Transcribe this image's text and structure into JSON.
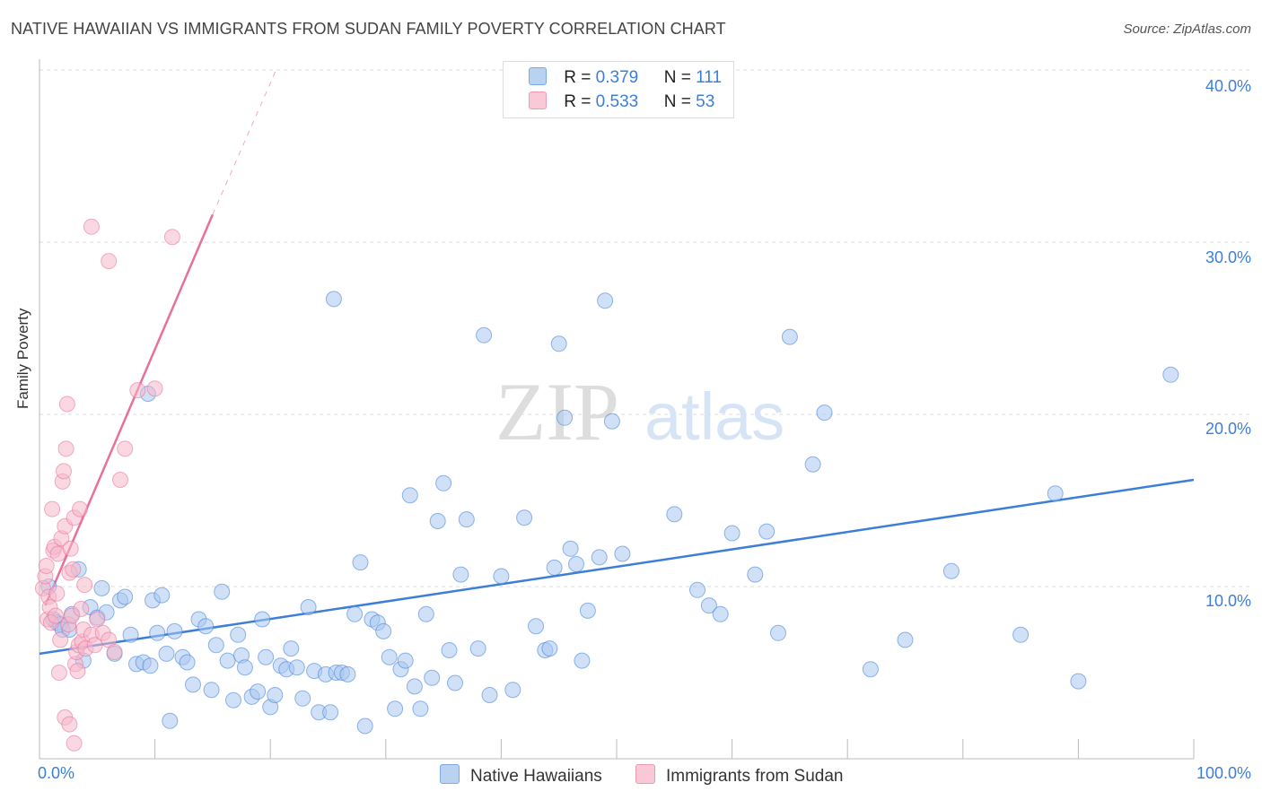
{
  "title": "NATIVE HAWAIIAN VS IMMIGRANTS FROM SUDAN FAMILY POVERTY CORRELATION CHART",
  "source": "Source: ZipAtlas.com",
  "watermark": {
    "zip": "ZIP",
    "atlas": "atlas"
  },
  "colors": {
    "blue": "#3d7ed8",
    "blue_fill": "#a9c6ee",
    "pink": "#e8709a",
    "pink_fill": "#f6b8cb"
  },
  "legend": {
    "rows": [
      {
        "r_label": "R = ",
        "r_value": "0.379",
        "n_label": "N = ",
        "n_value": "111"
      },
      {
        "r_label": "R = ",
        "r_value": "0.533",
        "n_label": "N = ",
        "n_value": "53"
      }
    ]
  },
  "bottom_legend": [
    "Native Hawaiians",
    "Immigrants from Sudan"
  ],
  "chart_data": {
    "type": "scatter",
    "title": "NATIVE HAWAIIAN VS IMMIGRANTS FROM SUDAN FAMILY POVERTY CORRELATION CHART",
    "xlabel": "",
    "ylabel": "Family Poverty",
    "xlim": [
      0,
      100
    ],
    "ylim": [
      0,
      40
    ],
    "x_tick_labels": [
      "0.0%",
      "100.0%"
    ],
    "y_ticks": [
      10,
      20,
      30,
      40
    ],
    "y_tick_labels": [
      "10.0%",
      "20.0%",
      "30.0%",
      "40.0%"
    ],
    "grid": true,
    "series": [
      {
        "name": "Native Hawaiians",
        "r": 0.379,
        "n": 111,
        "trend": {
          "x": [
            0,
            100
          ],
          "y": [
            6.1,
            16.2
          ]
        },
        "points": [
          [
            0.8,
            10.0
          ],
          [
            1.2,
            8.1
          ],
          [
            1.5,
            7.9
          ],
          [
            1.8,
            7.8
          ],
          [
            2.0,
            7.5
          ],
          [
            2.6,
            7.5
          ],
          [
            2.8,
            8.4
          ],
          [
            3.4,
            11.0
          ],
          [
            3.8,
            5.7
          ],
          [
            4.4,
            8.8
          ],
          [
            5.0,
            8.2
          ],
          [
            5.4,
            9.9
          ],
          [
            5.8,
            8.5
          ],
          [
            6.5,
            6.1
          ],
          [
            7.0,
            9.2
          ],
          [
            7.4,
            9.4
          ],
          [
            7.9,
            7.2
          ],
          [
            8.4,
            5.5
          ],
          [
            9.0,
            5.6
          ],
          [
            9.4,
            21.2
          ],
          [
            9.6,
            5.4
          ],
          [
            9.8,
            9.2
          ],
          [
            10.2,
            7.3
          ],
          [
            10.6,
            9.5
          ],
          [
            11.0,
            6.1
          ],
          [
            11.3,
            2.2
          ],
          [
            11.7,
            7.4
          ],
          [
            12.4,
            5.9
          ],
          [
            12.8,
            5.6
          ],
          [
            13.3,
            4.3
          ],
          [
            13.8,
            8.1
          ],
          [
            14.4,
            7.7
          ],
          [
            14.9,
            4.0
          ],
          [
            15.3,
            6.6
          ],
          [
            15.8,
            9.7
          ],
          [
            16.3,
            5.7
          ],
          [
            16.8,
            3.4
          ],
          [
            17.2,
            7.2
          ],
          [
            17.5,
            6.0
          ],
          [
            17.8,
            5.3
          ],
          [
            18.4,
            3.6
          ],
          [
            18.9,
            3.9
          ],
          [
            19.3,
            8.1
          ],
          [
            19.6,
            5.9
          ],
          [
            20.0,
            3.0
          ],
          [
            20.4,
            3.7
          ],
          [
            20.9,
            5.4
          ],
          [
            21.4,
            5.2
          ],
          [
            21.8,
            6.4
          ],
          [
            22.3,
            5.3
          ],
          [
            22.8,
            3.5
          ],
          [
            23.3,
            8.8
          ],
          [
            23.8,
            5.1
          ],
          [
            24.2,
            2.7
          ],
          [
            24.8,
            4.9
          ],
          [
            25.2,
            2.7
          ],
          [
            25.5,
            26.7
          ],
          [
            25.7,
            5.0
          ],
          [
            26.2,
            5.0
          ],
          [
            26.7,
            4.9
          ],
          [
            27.3,
            8.4
          ],
          [
            27.8,
            11.4
          ],
          [
            28.2,
            1.9
          ],
          [
            28.8,
            8.1
          ],
          [
            29.3,
            7.9
          ],
          [
            29.8,
            7.4
          ],
          [
            30.3,
            5.9
          ],
          [
            30.8,
            2.9
          ],
          [
            31.3,
            5.2
          ],
          [
            31.7,
            5.7
          ],
          [
            32.1,
            15.3
          ],
          [
            32.5,
            4.2
          ],
          [
            33.0,
            2.9
          ],
          [
            33.5,
            8.4
          ],
          [
            34.0,
            4.7
          ],
          [
            34.5,
            13.8
          ],
          [
            35.0,
            16.0
          ],
          [
            35.5,
            6.3
          ],
          [
            36.0,
            4.4
          ],
          [
            36.5,
            10.7
          ],
          [
            37.0,
            13.9
          ],
          [
            38.0,
            6.4
          ],
          [
            38.5,
            24.6
          ],
          [
            39.0,
            3.7
          ],
          [
            40.0,
            10.6
          ],
          [
            41.0,
            4.0
          ],
          [
            42.0,
            14.0
          ],
          [
            43.0,
            7.7
          ],
          [
            43.8,
            6.3
          ],
          [
            44.2,
            6.4
          ],
          [
            44.6,
            11.1
          ],
          [
            45.0,
            24.1
          ],
          [
            45.5,
            19.8
          ],
          [
            46.0,
            12.2
          ],
          [
            46.5,
            11.3
          ],
          [
            47.0,
            5.7
          ],
          [
            47.5,
            8.6
          ],
          [
            48.5,
            11.7
          ],
          [
            49.0,
            26.6
          ],
          [
            49.6,
            19.6
          ],
          [
            50.5,
            11.9
          ],
          [
            55.0,
            14.2
          ],
          [
            57.0,
            9.8
          ],
          [
            58.0,
            8.9
          ],
          [
            59.0,
            8.4
          ],
          [
            60.0,
            13.1
          ],
          [
            62.0,
            10.7
          ],
          [
            63.0,
            13.2
          ],
          [
            64.0,
            7.3
          ],
          [
            65.0,
            24.5
          ],
          [
            67.0,
            17.1
          ],
          [
            68.0,
            20.1
          ],
          [
            72.0,
            5.2
          ],
          [
            75.0,
            6.9
          ],
          [
            79.0,
            10.9
          ],
          [
            85.0,
            7.2
          ],
          [
            88.0,
            15.4
          ],
          [
            90.0,
            4.5
          ],
          [
            98.0,
            22.3
          ]
        ]
      },
      {
        "name": "Immigrants from Sudan",
        "r": 0.533,
        "n": 53,
        "trend": {
          "x": [
            0.5,
            15
          ],
          "y": [
            8.9,
            31.6
          ]
        },
        "trend_extension": {
          "x": [
            15,
            20.5
          ],
          "y": [
            31.6,
            40
          ]
        },
        "points": [
          [
            0.3,
            9.9
          ],
          [
            0.5,
            10.6
          ],
          [
            0.6,
            11.2
          ],
          [
            0.7,
            8.1
          ],
          [
            0.8,
            9.4
          ],
          [
            0.9,
            8.8
          ],
          [
            1.0,
            7.9
          ],
          [
            1.1,
            14.5
          ],
          [
            1.2,
            12.1
          ],
          [
            1.3,
            12.3
          ],
          [
            1.4,
            8.3
          ],
          [
            1.5,
            9.6
          ],
          [
            1.6,
            11.9
          ],
          [
            1.7,
            5.0
          ],
          [
            1.8,
            6.9
          ],
          [
            1.9,
            12.8
          ],
          [
            2.0,
            16.1
          ],
          [
            2.1,
            16.7
          ],
          [
            2.2,
            13.5
          ],
          [
            2.3,
            18.0
          ],
          [
            2.4,
            20.6
          ],
          [
            2.5,
            7.8
          ],
          [
            2.6,
            10.8
          ],
          [
            2.7,
            12.2
          ],
          [
            2.8,
            8.3
          ],
          [
            2.9,
            11.0
          ],
          [
            3.0,
            14.0
          ],
          [
            3.1,
            5.5
          ],
          [
            3.2,
            6.2
          ],
          [
            3.3,
            5.1
          ],
          [
            3.4,
            6.6
          ],
          [
            3.5,
            14.5
          ],
          [
            3.6,
            8.7
          ],
          [
            3.7,
            6.8
          ],
          [
            3.8,
            7.5
          ],
          [
            3.9,
            10.1
          ],
          [
            4.0,
            6.4
          ],
          [
            4.5,
            7.2
          ],
          [
            4.8,
            6.6
          ],
          [
            5.0,
            8.1
          ],
          [
            5.5,
            7.3
          ],
          [
            6.0,
            6.9
          ],
          [
            6.5,
            6.2
          ],
          [
            7.0,
            16.2
          ],
          [
            7.4,
            18.0
          ],
          [
            2.2,
            2.4
          ],
          [
            2.6,
            2.0
          ],
          [
            3.0,
            0.9
          ],
          [
            4.5,
            30.9
          ],
          [
            6.0,
            28.9
          ],
          [
            8.5,
            21.4
          ],
          [
            10.0,
            21.5
          ],
          [
            11.5,
            30.3
          ]
        ]
      }
    ]
  }
}
